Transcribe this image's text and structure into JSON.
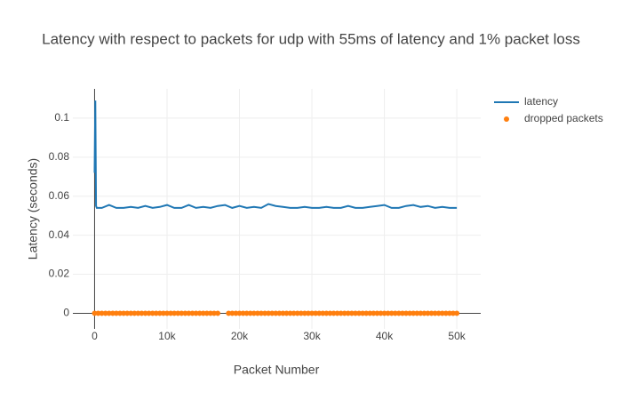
{
  "chart_data": {
    "type": "line",
    "title": "Latency with respect to packets for udp with 55ms of latency and 1% packet loss",
    "x_label": "Packet Number",
    "y_label": "Latency (seconds)",
    "xlim": [
      -3000,
      53300
    ],
    "ylim": [
      -0.008,
      0.115
    ],
    "xticks": [
      {
        "value": 0,
        "label": "0"
      },
      {
        "value": 10000,
        "label": "10k"
      },
      {
        "value": 20000,
        "label": "20k"
      },
      {
        "value": 30000,
        "label": "30k"
      },
      {
        "value": 40000,
        "label": "40k"
      },
      {
        "value": 50000,
        "label": "50k"
      }
    ],
    "yticks": [
      0,
      0.02,
      0.04,
      0.06,
      0.08,
      0.1
    ],
    "grid": true,
    "legend": "top-right",
    "series": [
      {
        "name": "latency",
        "type": "line",
        "color": "#1f77b4",
        "x": [
          0,
          100,
          200,
          300,
          1000,
          2000,
          3000,
          4000,
          5000,
          6000,
          7000,
          8000,
          9000,
          10000,
          11000,
          12000,
          13000,
          14000,
          15000,
          16000,
          17000,
          18000,
          19000,
          20000,
          21000,
          22000,
          23000,
          24000,
          25000,
          26000,
          27000,
          28000,
          29000,
          30000,
          31000,
          32000,
          33000,
          34000,
          35000,
          36000,
          37000,
          38000,
          39000,
          40000,
          41000,
          42000,
          43000,
          44000,
          45000,
          46000,
          47000,
          48000,
          49000,
          50000
        ],
        "values": [
          0.072,
          0.109,
          0.055,
          0.054,
          0.054,
          0.0555,
          0.054,
          0.054,
          0.0545,
          0.054,
          0.055,
          0.054,
          0.0545,
          0.0555,
          0.054,
          0.054,
          0.0555,
          0.054,
          0.0545,
          0.054,
          0.055,
          0.0555,
          0.054,
          0.055,
          0.054,
          0.0545,
          0.054,
          0.056,
          0.055,
          0.0545,
          0.054,
          0.054,
          0.0545,
          0.054,
          0.054,
          0.0545,
          0.054,
          0.054,
          0.055,
          0.054,
          0.054,
          0.0545,
          0.055,
          0.0555,
          0.054,
          0.054,
          0.055,
          0.0555,
          0.0545,
          0.055,
          0.054,
          0.0545,
          0.054,
          0.054
        ]
      },
      {
        "name": "dropped packets",
        "type": "scatter",
        "color": "#ff7f0e",
        "x": [
          0,
          500,
          1000,
          1500,
          2000,
          2500,
          3000,
          3500,
          4000,
          4500,
          5000,
          5500,
          6000,
          6500,
          7000,
          7500,
          8000,
          8500,
          9000,
          9500,
          10000,
          10500,
          11000,
          11500,
          12000,
          12500,
          13000,
          13500,
          14000,
          14500,
          15000,
          15500,
          16000,
          16500,
          17000,
          18500,
          19000,
          19500,
          20000,
          20500,
          21000,
          21500,
          22000,
          22500,
          23000,
          23500,
          24000,
          24500,
          25000,
          25500,
          26000,
          26500,
          27000,
          27500,
          28000,
          28500,
          29000,
          29500,
          30000,
          30500,
          31000,
          31500,
          32000,
          32500,
          33000,
          33500,
          34000,
          34500,
          35000,
          35500,
          36000,
          36500,
          37000,
          37500,
          38000,
          38500,
          39000,
          39500,
          40000,
          40500,
          41000,
          41500,
          42000,
          42500,
          43000,
          43500,
          44000,
          44500,
          45000,
          45500,
          46000,
          46500,
          47000,
          47500,
          48000,
          48500,
          49000,
          49500,
          50000
        ],
        "values": [
          0,
          0,
          0,
          0,
          0,
          0,
          0,
          0,
          0,
          0,
          0,
          0,
          0,
          0,
          0,
          0,
          0,
          0,
          0,
          0,
          0,
          0,
          0,
          0,
          0,
          0,
          0,
          0,
          0,
          0,
          0,
          0,
          0,
          0,
          0,
          0,
          0,
          0,
          0,
          0,
          0,
          0,
          0,
          0,
          0,
          0,
          0,
          0,
          0,
          0,
          0,
          0,
          0,
          0,
          0,
          0,
          0,
          0,
          0,
          0,
          0,
          0,
          0,
          0,
          0,
          0,
          0,
          0,
          0,
          0,
          0,
          0,
          0,
          0,
          0,
          0,
          0,
          0,
          0,
          0,
          0,
          0,
          0,
          0,
          0,
          0,
          0,
          0,
          0,
          0,
          0,
          0,
          0,
          0,
          0,
          0,
          0,
          0,
          0
        ]
      }
    ]
  }
}
